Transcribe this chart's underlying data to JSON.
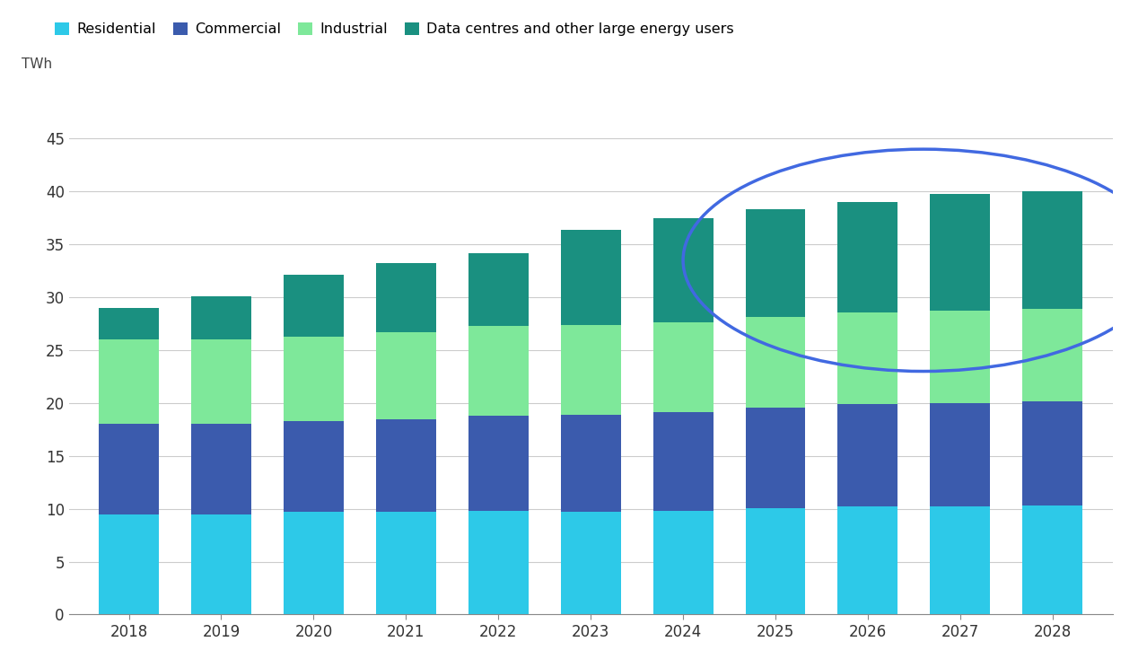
{
  "years": [
    2018,
    2019,
    2020,
    2021,
    2022,
    2023,
    2024,
    2025,
    2026,
    2027,
    2028
  ],
  "residential": [
    9.5,
    9.5,
    9.7,
    9.7,
    9.8,
    9.7,
    9.8,
    10.1,
    10.2,
    10.2,
    10.3
  ],
  "commercial": [
    8.5,
    8.5,
    8.6,
    8.8,
    9.0,
    9.2,
    9.3,
    9.5,
    9.7,
    9.8,
    9.9
  ],
  "industrial": [
    8.0,
    8.0,
    8.0,
    8.2,
    8.5,
    8.5,
    8.5,
    8.5,
    8.7,
    8.7,
    8.7
  ],
  "data_centres": [
    3.0,
    4.1,
    5.8,
    6.5,
    6.9,
    9.0,
    9.9,
    10.2,
    10.4,
    11.1,
    11.1
  ],
  "colors": {
    "residential": "#2DC9E8",
    "commercial": "#3B5BAD",
    "industrial": "#7EE89A",
    "data_centres": "#1A9080"
  },
  "legend_labels": [
    "Residential",
    "Commercial",
    "Industrial",
    "Data centres and other large energy users"
  ],
  "ylabel": "TWh",
  "ylim": [
    0,
    48
  ],
  "yticks": [
    0,
    5,
    10,
    15,
    20,
    25,
    30,
    35,
    40,
    45
  ],
  "background_color": "#ffffff",
  "grid_color": "#cccccc",
  "ellipse_color": "#4169E1",
  "bar_width": 0.65
}
